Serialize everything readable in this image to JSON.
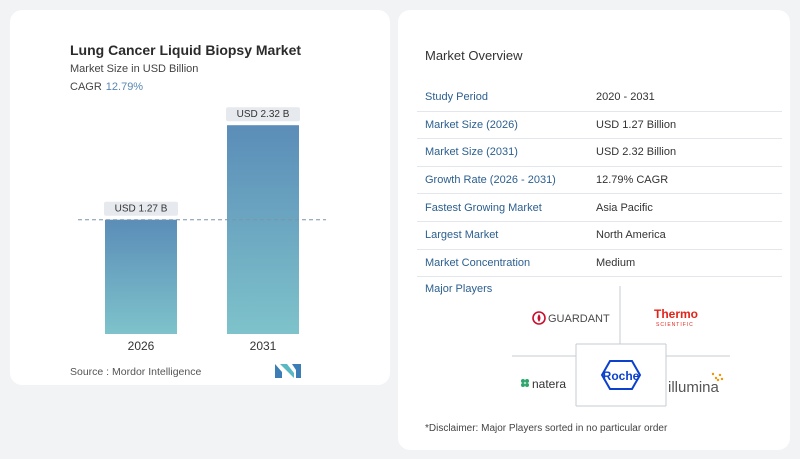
{
  "chart_data": {
    "type": "bar",
    "title": "Lung Cancer Liquid Biopsy Market",
    "subtitle": "Market Size in USD Billion",
    "cagr_label": "CAGR",
    "cagr_value": "12.79%",
    "categories": [
      "2026",
      "2031"
    ],
    "values": [
      1.27,
      2.32
    ],
    "data_labels": [
      "USD 1.27 B",
      "USD 2.32 B"
    ],
    "ylim": [
      0,
      2.6
    ],
    "grid": false,
    "colors": {
      "bar_top": "#5b8db8",
      "bar_bottom": "#7ec3cb",
      "label_bg": "#e6e9ee",
      "dashed_line": "#7a93ad"
    }
  },
  "source": "Source :  Mordor Intelligence",
  "overview": {
    "title": "Market Overview",
    "rows": [
      {
        "key": "Study Period",
        "value": "2020 - 2031"
      },
      {
        "key": "Market Size (2026)",
        "value": "USD 1.27 Billion"
      },
      {
        "key": "Market Size (2031)",
        "value": "USD 2.32 Billion"
      },
      {
        "key": "Growth Rate (2026 - 2031)",
        "value": "12.79% CAGR"
      },
      {
        "key": "Fastest Growing Market",
        "value": "Asia Pacific"
      },
      {
        "key": "Largest Market",
        "value": "North America"
      },
      {
        "key": "Market Concentration",
        "value": "Medium"
      }
    ]
  },
  "major_players": {
    "title": "Major Players",
    "logos": {
      "guardant": "GUARDANT",
      "thermo": "Thermo",
      "thermo_sub": "SCIENTIFIC",
      "natera": "natera",
      "roche": "Roche",
      "illumina": "illumina"
    }
  },
  "disclaimer": "*Disclaimer: Major Players sorted in no particular order",
  "brand": {
    "accent": "#2c5f8f",
    "guardant_red": "#c8102e",
    "thermo_red": "#e2231a",
    "natera_green": "#2ea66b",
    "roche_blue": "#0b41cd"
  }
}
